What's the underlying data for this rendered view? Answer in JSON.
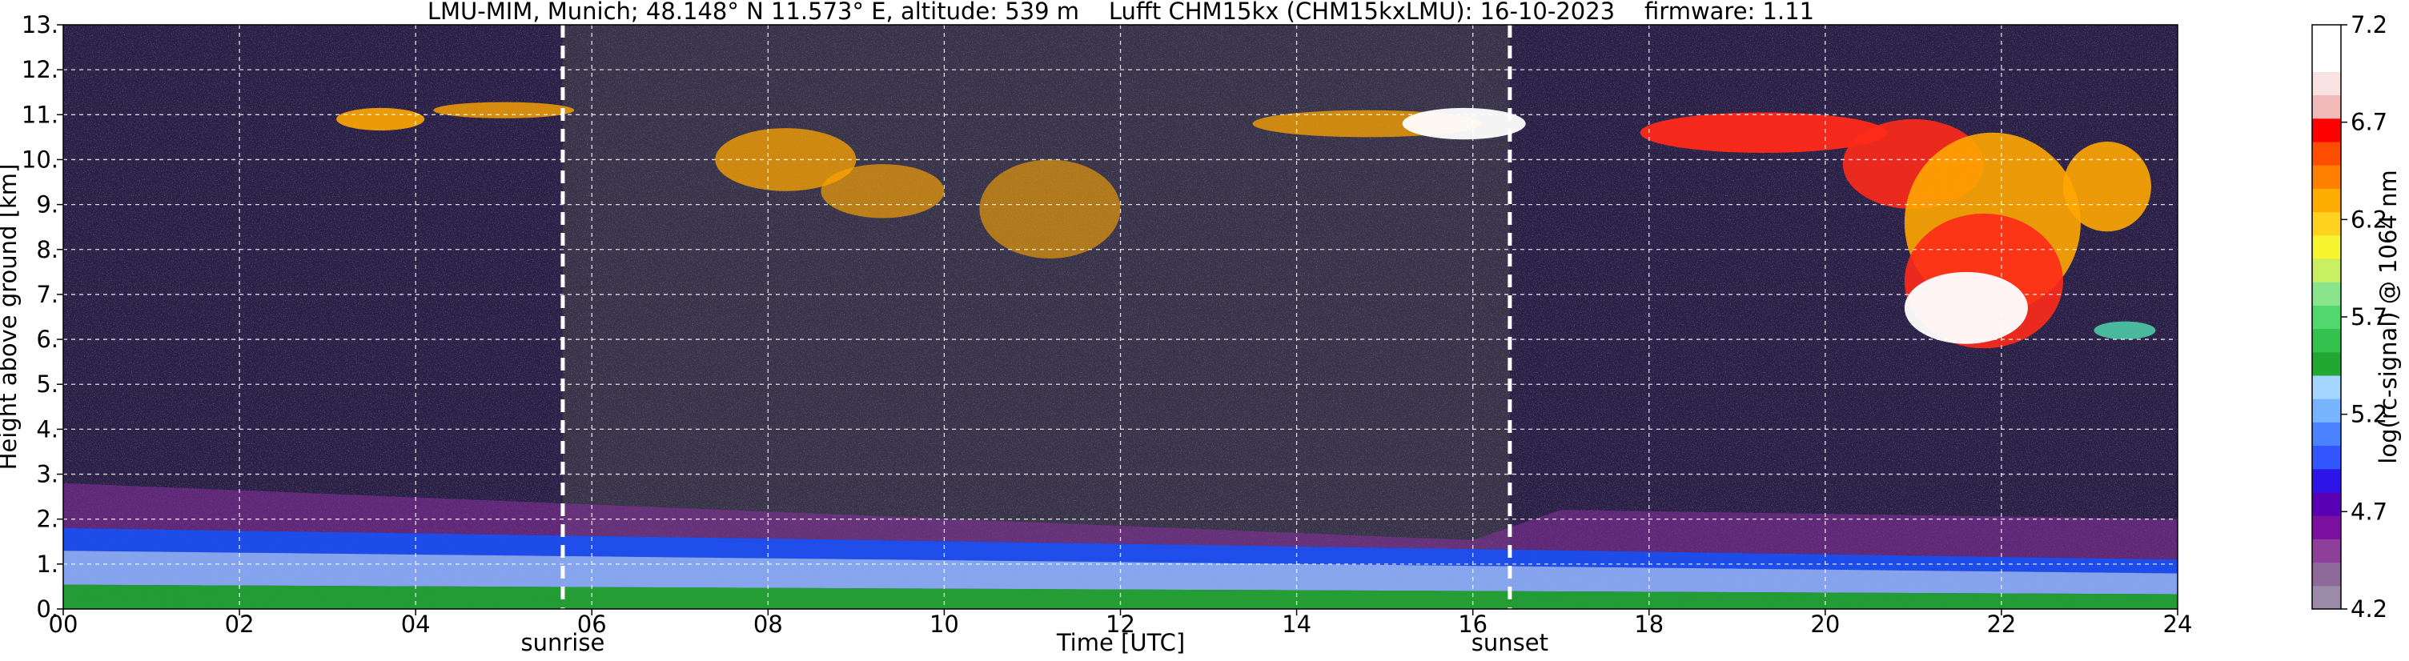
{
  "chart_data": {
    "type": "heatmap",
    "title": "LMU-MIM, Munich; 48.148° N 11.573° E, altitude: 539 m    Lufft CHM15kx (CHM15kxLMU): 16-10-2023    firmware: 1.11",
    "xlabel": "Time [UTC]",
    "ylabel": "Height above ground [km]",
    "colorbar_label": "log(rc-signal) @ 1064 nm",
    "xlim": [
      0,
      24
    ],
    "ylim": [
      0,
      13
    ],
    "x_ticks": [
      "00",
      "02",
      "04",
      "06",
      "08",
      "10",
      "12",
      "14",
      "16",
      "18",
      "20",
      "22",
      "24"
    ],
    "y_ticks": [
      "0.",
      "1.",
      "2.",
      "3.",
      "4.",
      "5.",
      "6.",
      "7.",
      "8.",
      "9.",
      "10.",
      "11.",
      "12.",
      "13."
    ],
    "colorbar_range": [
      4.2,
      7.2
    ],
    "colorbar_ticks": [
      "4.2",
      "4.7",
      "5.2",
      "5.7",
      "6.2",
      "6.7",
      "7.2"
    ],
    "grid": true,
    "markers": [
      {
        "label": "sunrise",
        "time": 5.67
      },
      {
        "label": "sunset",
        "time": 16.42
      }
    ],
    "layers": [
      {
        "name": "boundary layer",
        "t0": 0,
        "t1": 24,
        "h_bottom": 0,
        "h_top_start": 1.8,
        "h_top_end": 1.1
      },
      {
        "name": "cirrus",
        "t0": 2.7,
        "t1": 23.7,
        "h_bottom": 5.7,
        "h_top": 11.3
      }
    ],
    "colors": {
      "background": "#2a1f45",
      "boundary_top": "#1d4ff2",
      "boundary_mid": "#8fb1ff",
      "surface": "#22a832",
      "cloud_core": "#ffffff",
      "cloud_edge": "#ff2a1a",
      "cloud_outer": "#ffa600",
      "aerosol_haze": "#8a2fa0"
    },
    "colormap": [
      "#9b8aa8",
      "#8e6a9b",
      "#8d3f9a",
      "#7a0fa0",
      "#5a00b4",
      "#2d14e8",
      "#3156ff",
      "#4b82ff",
      "#78b4ff",
      "#a4d6ff",
      "#22a832",
      "#33c24d",
      "#52d76f",
      "#8ae48c",
      "#c8f060",
      "#f7f530",
      "#ffd21f",
      "#ffac00",
      "#ff8000",
      "#ff4d00",
      "#ff0000",
      "#f2b9b9",
      "#f8e2e2",
      "#ffffff",
      "#ffffff"
    ]
  }
}
